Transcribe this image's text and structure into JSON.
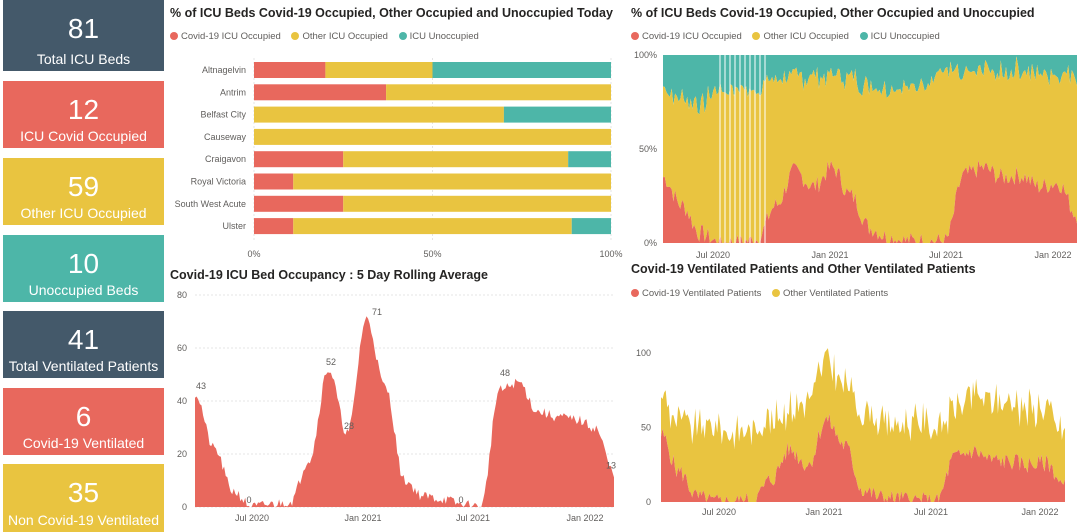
{
  "colors": {
    "covid": "#E8685D",
    "other": "#E9C440",
    "unoccupied": "#4DB6A8",
    "slate": "#44596A",
    "axis": "#605e5c",
    "grid": "#e4e4e4"
  },
  "kpis": [
    {
      "value": "81",
      "label": "Total ICU Beds",
      "color": "#44596A"
    },
    {
      "value": "12",
      "label": "ICU Covid Occupied",
      "color": "#E8685D"
    },
    {
      "value": "59",
      "label": "Other ICU Occupied",
      "color": "#E9C440"
    },
    {
      "value": "10",
      "label": "Unoccupied Beds",
      "color": "#4DB6A8"
    },
    {
      "value": "41",
      "label": "Total Ventilated Patients",
      "color": "#44596A"
    },
    {
      "value": "6",
      "label": "Covid-19 Ventilated",
      "color": "#E8685D"
    },
    {
      "value": "35",
      "label": "Non Covid-19 Ventilated",
      "color": "#E9C440"
    }
  ],
  "legends": {
    "icu": [
      "Covid-19 ICU Occupied",
      "Other ICU Occupied",
      "ICU Unoccupied"
    ],
    "vent": [
      "Covid-19 Ventilated Patients",
      "Other Ventilated Patients"
    ]
  },
  "chart_data": [
    {
      "type": "bar",
      "orientation": "horizontal-stacked-100",
      "title": "% of ICU Beds Covid-19 Occupied, Other Occupied and Unoccupied Today",
      "categories": [
        "Altnagelvin",
        "Antrim",
        "Belfast City",
        "Causeway",
        "Craigavon",
        "Royal Victoria",
        "South West Acute",
        "Ulster"
      ],
      "series": [
        {
          "name": "Covid-19 ICU Occupied",
          "values": [
            20,
            37,
            0,
            0,
            25,
            11,
            25,
            11
          ]
        },
        {
          "name": "Other ICU Occupied",
          "values": [
            30,
            63,
            70,
            100,
            63,
            89,
            75,
            78
          ]
        },
        {
          "name": "ICU Unoccupied",
          "values": [
            50,
            0,
            30,
            0,
            12,
            0,
            0,
            11
          ]
        }
      ],
      "x_ticks": [
        "0%",
        "50%",
        "100%"
      ],
      "xlim": [
        0,
        100
      ]
    },
    {
      "type": "area",
      "stacking": "100%",
      "title": "% of ICU Beds Covid-19 Occupied, Other Occupied and Unoccupied",
      "x_ticks": [
        "Jul 2020",
        "Jan 2021",
        "Jul 2021",
        "Jan 2022"
      ],
      "y_ticks": [
        "0%",
        "50%",
        "100%"
      ],
      "x": [
        "Apr 2020",
        "May 2020",
        "Jun 2020",
        "Jul 2020",
        "Aug 2020",
        "Sep 2020",
        "Oct 2020",
        "Nov 2020",
        "Dec 2020",
        "Jan 2021",
        "Feb 2021",
        "Mar 2021",
        "Apr 2021",
        "May 2021",
        "Jun 2021",
        "Jul 2021",
        "Aug 2021",
        "Sep 2021",
        "Oct 2021",
        "Nov 2021",
        "Dec 2021",
        "Jan 2022",
        "Feb 2022"
      ],
      "series": [
        {
          "name": "Covid-19 ICU Occupied",
          "values": [
            35,
            20,
            5,
            0,
            0,
            2,
            20,
            38,
            30,
            40,
            25,
            8,
            3,
            1,
            1,
            1,
            36,
            40,
            35,
            36,
            30,
            32,
            15
          ]
        },
        {
          "name": "Other ICU Occupied",
          "values": [
            47,
            57,
            70,
            80,
            81,
            80,
            67,
            50,
            58,
            50,
            62,
            77,
            80,
            82,
            84,
            90,
            52,
            52,
            55,
            56,
            60,
            58,
            75
          ]
        },
        {
          "name": "ICU Unoccupied",
          "values": [
            18,
            23,
            25,
            20,
            19,
            18,
            13,
            12,
            12,
            10,
            13,
            15,
            17,
            17,
            15,
            9,
            12,
            8,
            10,
            8,
            10,
            10,
            10
          ]
        }
      ]
    },
    {
      "type": "area",
      "title": "Covid-19 ICU Bed Occupancy : 5 Day Rolling Average",
      "y_ticks": [
        "0",
        "20",
        "40",
        "60",
        "80"
      ],
      "ylim": [
        0,
        80
      ],
      "x_ticks": [
        "Jul 2020",
        "Jan 2021",
        "Jul 2021",
        "Jan 2022"
      ],
      "x": [
        "Apr 2020",
        "May 2020",
        "Jun 2020",
        "Jul 2020",
        "Aug 2020",
        "Sep 2020",
        "Oct 2020",
        "Nov 2020",
        "Dec 2020",
        "Jan 2021",
        "Feb 2021",
        "Mar 2021",
        "Apr 2021",
        "May 2021",
        "Jun 2021",
        "Jul 2021",
        "Aug 2021",
        "Sep 2021",
        "Oct 2021",
        "Nov 2021",
        "Dec 2021",
        "Jan 2022",
        "Feb 2022"
      ],
      "series": [
        {
          "name": "Covid-19 ICU Occupied",
          "values": [
            43,
            22,
            6,
            0,
            1,
            2,
            18,
            52,
            28,
            71,
            45,
            10,
            4,
            3,
            1,
            0,
            44,
            47,
            36,
            34,
            33,
            30,
            13
          ]
        }
      ],
      "data_labels": [
        "43",
        "0",
        "52",
        "28",
        "71",
        "0",
        "48",
        "13"
      ]
    },
    {
      "type": "area",
      "stacking": "stacked",
      "title": "Covid-19 Ventilated Patients and Other Ventilated Patients",
      "y_ticks": [
        "0",
        "50",
        "100"
      ],
      "ylim": [
        0,
        110
      ],
      "x_ticks": [
        "Jul 2020",
        "Jan 2021",
        "Jul 2021",
        "Jan 2022"
      ],
      "x": [
        "Apr 2020",
        "May 2020",
        "Jun 2020",
        "Jul 2020",
        "Aug 2020",
        "Sep 2020",
        "Oct 2020",
        "Nov 2020",
        "Dec 2020",
        "Jan 2021",
        "Feb 2021",
        "Mar 2021",
        "Apr 2021",
        "May 2021",
        "Jun 2021",
        "Jul 2021",
        "Aug 2021",
        "Sep 2021",
        "Oct 2021",
        "Nov 2021",
        "Dec 2021",
        "Jan 2022",
        "Feb 2022"
      ],
      "series": [
        {
          "name": "Covid-19 Ventilated Patients",
          "values": [
            45,
            20,
            3,
            0,
            0,
            1,
            15,
            35,
            25,
            55,
            38,
            8,
            3,
            2,
            1,
            0,
            30,
            34,
            28,
            27,
            25,
            26,
            10
          ]
        },
        {
          "name": "Other Ventilated Patients",
          "values": [
            25,
            35,
            45,
            48,
            45,
            47,
            40,
            28,
            45,
            40,
            40,
            55,
            50,
            48,
            52,
            48,
            30,
            38,
            38,
            40,
            38,
            36,
            35
          ]
        }
      ]
    }
  ]
}
